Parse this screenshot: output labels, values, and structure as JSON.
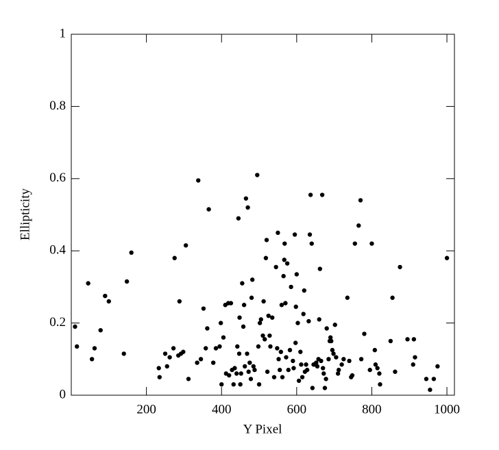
{
  "chart_data": {
    "type": "scatter",
    "xlabel": "Y Pixel",
    "ylabel": "Ellipticity",
    "xlim": [
      0,
      1020
    ],
    "ylim": [
      0,
      1
    ],
    "xticks": [
      200,
      400,
      600,
      800,
      1000
    ],
    "yticks": [
      0,
      0.2,
      0.4,
      0.6,
      0.8,
      1
    ],
    "color": "#000000",
    "x": [
      10,
      15,
      45,
      55,
      62,
      78,
      90,
      100,
      140,
      148,
      160,
      233,
      235,
      250,
      255,
      262,
      272,
      275,
      285,
      288,
      292,
      298,
      305,
      312,
      335,
      338,
      345,
      352,
      358,
      362,
      366,
      378,
      385,
      395,
      398,
      400,
      405,
      410,
      412,
      418,
      420,
      425,
      428,
      432,
      435,
      440,
      442,
      445,
      447,
      448,
      450,
      452,
      455,
      458,
      460,
      462,
      465,
      468,
      470,
      472,
      475,
      478,
      480,
      482,
      485,
      488,
      495,
      498,
      500,
      502,
      505,
      510,
      512,
      515,
      518,
      520,
      522,
      525,
      528,
      530,
      535,
      540,
      545,
      548,
      550,
      552,
      555,
      558,
      560,
      562,
      565,
      567,
      568,
      570,
      572,
      575,
      578,
      582,
      585,
      590,
      592,
      595,
      597,
      598,
      600,
      603,
      606,
      610,
      612,
      615,
      618,
      620,
      622,
      625,
      628,
      632,
      635,
      637,
      640,
      642,
      645,
      648,
      652,
      655,
      658,
      660,
      662,
      665,
      668,
      670,
      672,
      675,
      678,
      680,
      685,
      688,
      690,
      692,
      695,
      698,
      702,
      705,
      710,
      712,
      720,
      725,
      735,
      740,
      745,
      748,
      755,
      765,
      770,
      772,
      780,
      795,
      800,
      808,
      810,
      815,
      820,
      822,
      850,
      855,
      862,
      875,
      895,
      910,
      912,
      915,
      945,
      955,
      965,
      975,
      1000
    ],
    "y": [
      0.19,
      0.135,
      0.31,
      0.1,
      0.13,
      0.18,
      0.275,
      0.26,
      0.115,
      0.315,
      0.395,
      0.075,
      0.05,
      0.115,
      0.08,
      0.105,
      0.13,
      0.38,
      0.11,
      0.26,
      0.115,
      0.12,
      0.415,
      0.045,
      0.09,
      0.595,
      0.1,
      0.24,
      0.13,
      0.185,
      0.515,
      0.09,
      0.13,
      0.135,
      0.2,
      0.03,
      0.16,
      0.25,
      0.06,
      0.255,
      0.055,
      0.255,
      0.07,
      0.03,
      0.075,
      0.06,
      0.135,
      0.49,
      0.115,
      0.215,
      0.03,
      0.06,
      0.31,
      0.19,
      0.25,
      0.08,
      0.545,
      0.115,
      0.52,
      0.065,
      0.09,
      0.045,
      0.27,
      0.32,
      0.08,
      0.07,
      0.61,
      0.135,
      0.03,
      0.2,
      0.21,
      0.165,
      0.26,
      0.155,
      0.38,
      0.43,
      0.065,
      0.22,
      0.165,
      0.135,
      0.215,
      0.05,
      0.355,
      0.13,
      0.45,
      0.1,
      0.07,
      0.12,
      0.25,
      0.05,
      0.33,
      0.375,
      0.42,
      0.255,
      0.105,
      0.365,
      0.07,
      0.125,
      0.3,
      0.095,
      0.075,
      0.445,
      0.145,
      0.245,
      0.335,
      0.2,
      0.04,
      0.12,
      0.085,
      0.05,
      0.225,
      0.29,
      0.065,
      0.085,
      0.07,
      0.205,
      0.445,
      0.555,
      0.42,
      0.02,
      0.085,
      0.085,
      0.09,
      0.08,
      0.1,
      0.21,
      0.35,
      0.095,
      0.555,
      0.075,
      0.06,
      0.02,
      0.045,
      0.185,
      0.1,
      0.15,
      0.16,
      0.15,
      0.125,
      0.115,
      0.195,
      0.105,
      0.06,
      0.07,
      0.085,
      0.1,
      0.27,
      0.095,
      0.05,
      0.055,
      0.42,
      0.47,
      0.54,
      0.1,
      0.17,
      0.07,
      0.42,
      0.125,
      0.085,
      0.075,
      0.06,
      0.03,
      0.15,
      0.27,
      0.065,
      0.355,
      0.155,
      0.085,
      0.155,
      0.105,
      0.045,
      0.015,
      0.045,
      0.08,
      0.38
    ]
  }
}
